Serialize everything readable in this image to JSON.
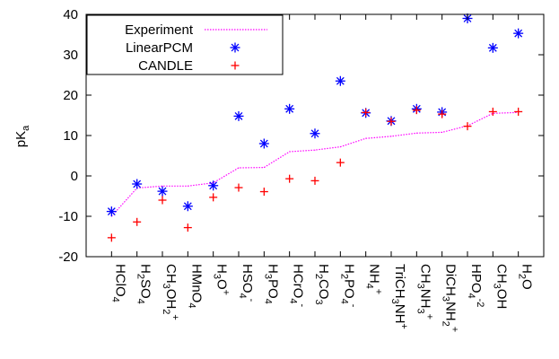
{
  "chart_data": {
    "type": "scatter",
    "ylabel": "pK",
    "ylabel_sub": "a",
    "ylim": [
      -20,
      40
    ],
    "yticks": [
      -20,
      -10,
      0,
      10,
      20,
      30,
      40
    ],
    "grid": false,
    "legend_position": "top-left",
    "categories": [
      {
        "label": [
          [
            "HClO",
            ""
          ],
          [
            "4",
            "sub"
          ]
        ]
      },
      {
        "label": [
          [
            "H",
            ""
          ],
          [
            "2",
            "sub"
          ],
          [
            "SO",
            ""
          ],
          [
            "4",
            "sub"
          ]
        ]
      },
      {
        "label": [
          [
            "CH",
            ""
          ],
          [
            "3",
            "sub"
          ],
          [
            "OH",
            ""
          ],
          [
            "2",
            "sub"
          ],
          [
            "+",
            "sup"
          ]
        ]
      },
      {
        "label": [
          [
            "HMnO",
            ""
          ],
          [
            "4",
            "sub"
          ]
        ]
      },
      {
        "label": [
          [
            "H",
            ""
          ],
          [
            "3",
            "sub"
          ],
          [
            "O",
            ""
          ],
          [
            "+",
            "sup"
          ]
        ]
      },
      {
        "label": [
          [
            "HSO",
            ""
          ],
          [
            "4",
            "sub"
          ],
          [
            "-",
            "sup"
          ]
        ]
      },
      {
        "label": [
          [
            "H",
            ""
          ],
          [
            "3",
            "sub"
          ],
          [
            "PO",
            ""
          ],
          [
            "4",
            "sub"
          ]
        ]
      },
      {
        "label": [
          [
            "HCrO",
            ""
          ],
          [
            "4",
            "sub"
          ],
          [
            "-",
            "sup"
          ]
        ]
      },
      {
        "label": [
          [
            "H",
            ""
          ],
          [
            "2",
            "sub"
          ],
          [
            "CO",
            ""
          ],
          [
            "3",
            "sub"
          ]
        ]
      },
      {
        "label": [
          [
            "H",
            ""
          ],
          [
            "2",
            "sub"
          ],
          [
            "PO",
            ""
          ],
          [
            "4",
            "sub"
          ],
          [
            "-",
            "sup"
          ]
        ]
      },
      {
        "label": [
          [
            "NH",
            ""
          ],
          [
            "4",
            "sub"
          ],
          [
            "+",
            "sup"
          ]
        ]
      },
      {
        "label": [
          [
            "TriCH",
            ""
          ],
          [
            "3",
            "sub"
          ],
          [
            "NH",
            ""
          ],
          [
            "+",
            "sup"
          ]
        ]
      },
      {
        "label": [
          [
            "CH",
            ""
          ],
          [
            "3",
            "sub"
          ],
          [
            "NH",
            ""
          ],
          [
            "3",
            "sub"
          ],
          [
            "+",
            "sup"
          ]
        ]
      },
      {
        "label": [
          [
            "DiCH",
            ""
          ],
          [
            "3",
            "sub"
          ],
          [
            "NH",
            ""
          ],
          [
            "2",
            "sub"
          ],
          [
            "+",
            "sup"
          ]
        ]
      },
      {
        "label": [
          [
            "HPO",
            ""
          ],
          [
            "4",
            "sub"
          ],
          [
            "-2",
            "sup"
          ]
        ]
      },
      {
        "label": [
          [
            "CH",
            ""
          ],
          [
            "3",
            "sub"
          ],
          [
            "OH",
            ""
          ]
        ]
      },
      {
        "label": [
          [
            "H",
            ""
          ],
          [
            "2",
            "sub"
          ],
          [
            "O",
            ""
          ]
        ]
      }
    ],
    "series": [
      {
        "name": "Experiment",
        "style": "dotted-line",
        "color": "#ff00ff",
        "values": [
          -10,
          -3,
          -2.5,
          -2.5,
          -1.7,
          2,
          2.1,
          6,
          6.4,
          7.2,
          9.3,
          9.8,
          10.6,
          10.8,
          12.4,
          15.5,
          15.7
        ]
      },
      {
        "name": "LinearPCM",
        "style": "asterisk",
        "color": "#0000ff",
        "values": [
          -8.8,
          -2,
          -3.8,
          -7.5,
          -2.4,
          14.8,
          8,
          16.6,
          10.5,
          23.5,
          15.6,
          13.6,
          16.6,
          15.8,
          39,
          31.7,
          35.3
        ]
      },
      {
        "name": "CANDLE",
        "style": "plus",
        "color": "#ff0000",
        "values": [
          -15.3,
          -11.4,
          -6,
          -12.8,
          -5.3,
          -2.9,
          -3.9,
          -0.7,
          -1.2,
          3.3,
          15.7,
          13.5,
          16.3,
          15.3,
          12.3,
          15.9,
          15.9
        ]
      }
    ]
  }
}
